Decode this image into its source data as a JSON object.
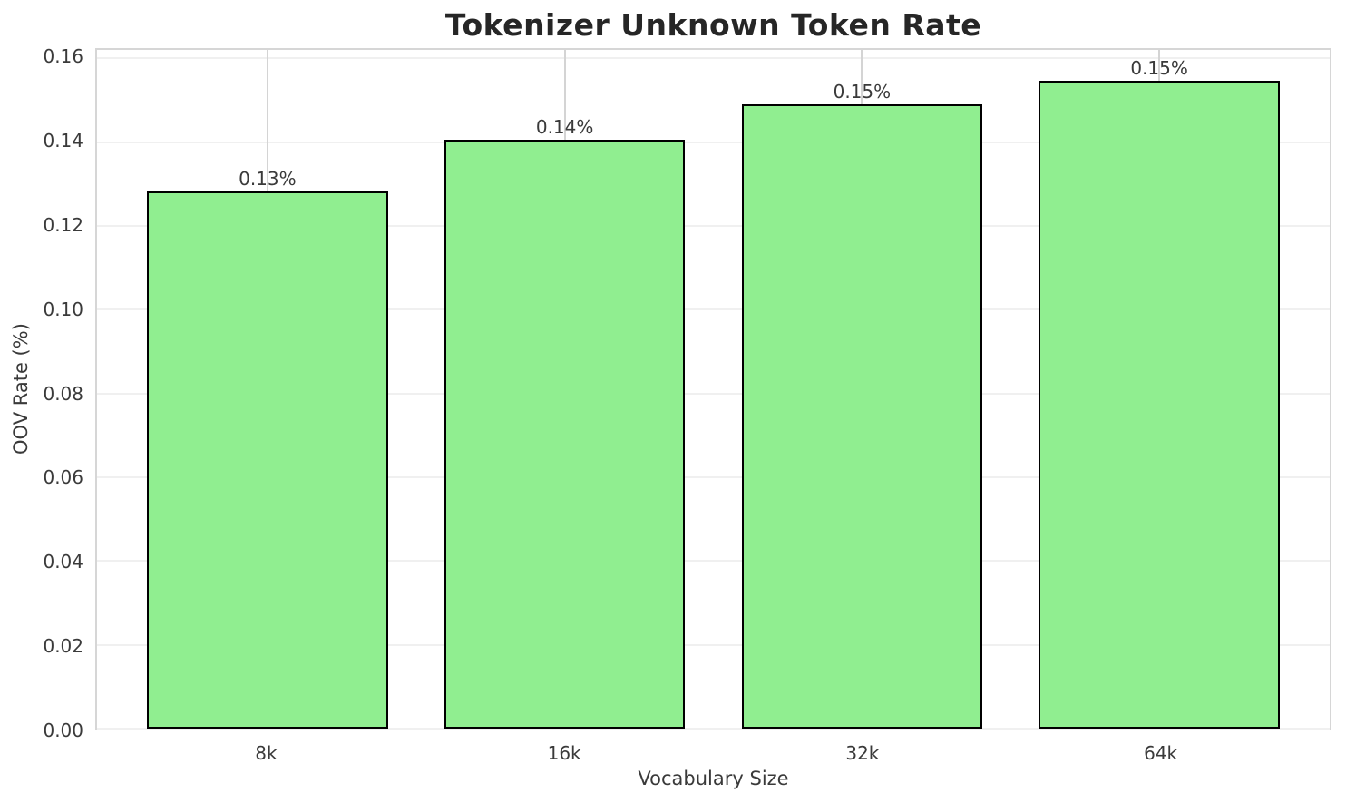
{
  "chart_data": {
    "type": "bar",
    "title": "Tokenizer Unknown Token Rate",
    "xlabel": "Vocabulary Size",
    "ylabel": "OOV Rate (%)",
    "categories": [
      "8k",
      "16k",
      "32k",
      "64k"
    ],
    "values": [
      0.1282,
      0.1405,
      0.1491,
      0.1546
    ],
    "bar_labels": [
      "0.13%",
      "0.14%",
      "0.15%",
      "0.15%"
    ],
    "yticks": [
      0.0,
      0.02,
      0.04,
      0.06,
      0.08,
      0.1,
      0.12,
      0.14,
      0.16
    ],
    "ytick_labels": [
      "0.00",
      "0.02",
      "0.04",
      "0.06",
      "0.08",
      "0.10",
      "0.12",
      "0.14",
      "0.16"
    ],
    "ylim": [
      0,
      0.162
    ],
    "grid": true,
    "legend_position": "none",
    "colors": {
      "bar_fill": "#90EE90",
      "bar_edge": "#000000",
      "h_grid": "#f0f0f0",
      "v_grid": "#d4d4d4",
      "spine": "#d6d6d6",
      "title_text": "#262626",
      "tick_text": "#3a3a3a",
      "background": "#ffffff"
    }
  }
}
